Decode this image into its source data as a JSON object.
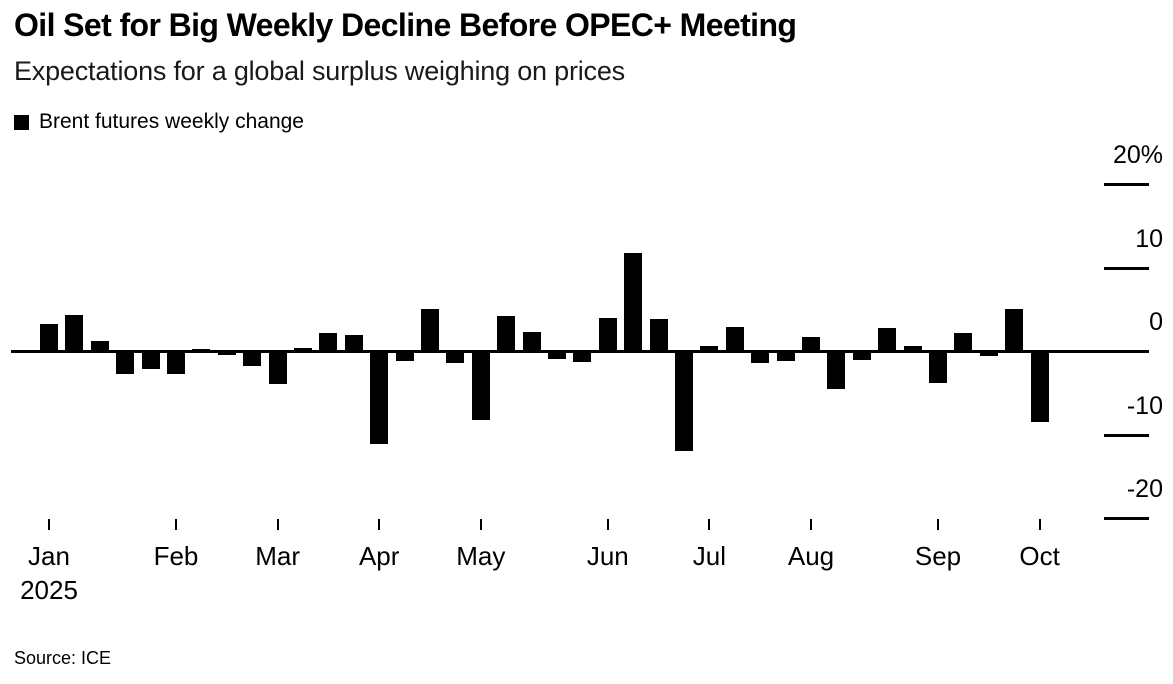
{
  "header": {
    "title": "Oil Set for Big Weekly Decline Before OPEC+ Meeting",
    "subtitle": "Expectations for a global surplus weighing on prices"
  },
  "legend": {
    "label": "Brent futures weekly change",
    "swatch_color": "#000000"
  },
  "source": {
    "text": "Source: ICE"
  },
  "chart_data": {
    "type": "bar",
    "title": "Oil Set for Big Weekly Decline Before OPEC+ Meeting",
    "subtitle": "Expectations for a global surplus weighing on prices",
    "unit": "% weekly change",
    "grid": "off",
    "legend_position": "top-left",
    "baseline": 0,
    "series": [
      {
        "name": "Brent futures weekly change",
        "color": "#000000",
        "values": [
          3.3,
          4.4,
          1.3,
          -2.8,
          -2.2,
          -2.8,
          0.3,
          -0.5,
          -1.8,
          -3.9,
          0.5,
          2.3,
          2.0,
          -11.1,
          -1.2,
          5.1,
          -1.4,
          -8.3,
          4.3,
          2.4,
          -1.0,
          -1.3,
          4.1,
          11.9,
          3.9,
          -12.0,
          0.7,
          3.0,
          -1.4,
          -1.2,
          1.8,
          -4.5,
          -1.1,
          2.9,
          0.7,
          -3.8,
          2.3,
          -0.6,
          5.2,
          -8.5
        ]
      }
    ],
    "x_axis": {
      "tick_labels": [
        "Jan",
        "Feb",
        "Mar",
        "Apr",
        "May",
        "Jun",
        "Jul",
        "Aug",
        "Sep",
        "Oct"
      ],
      "year_label": "2025",
      "first_bar_of_month_index": [
        0,
        5,
        9,
        13,
        17,
        22,
        26,
        30,
        35,
        39
      ]
    },
    "y_axis": {
      "side": "right",
      "tick_values": [
        20,
        10,
        0,
        -10,
        -20
      ],
      "tick_labels": [
        "20%",
        "10",
        "0",
        "-10",
        "-20"
      ],
      "range": [
        -25,
        25
      ]
    }
  }
}
